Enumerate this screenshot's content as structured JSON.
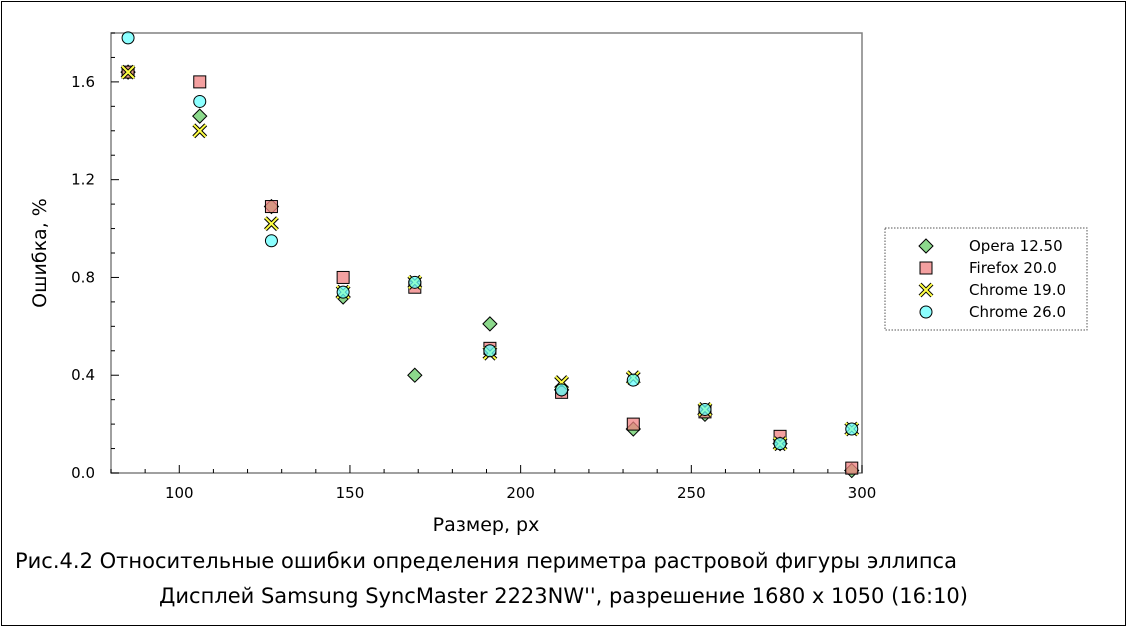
{
  "chart_data": {
    "type": "scatter",
    "xlabel": "Размер, px",
    "ylabel": "Ошибка, %",
    "xlim": [
      80,
      300
    ],
    "ylim": [
      0.0,
      1.8
    ],
    "xticks": [
      100,
      150,
      200,
      250,
      300
    ],
    "xtick_labels": [
      "100",
      "150",
      "200",
      "250",
      "300"
    ],
    "yticks": [
      0.0,
      0.4,
      0.8,
      1.2,
      1.6
    ],
    "ytick_labels": [
      "0.0",
      "0.4",
      "0.8",
      "1.2",
      "1.6"
    ],
    "grid": false,
    "legend_position": "right, outside plot",
    "series": [
      {
        "name": "Opera 12.50",
        "marker": "diamond",
        "color": "#66cc66",
        "x": [
          85,
          106,
          127,
          148,
          169,
          191,
          212,
          233,
          254,
          276,
          297
        ],
        "y": [
          1.64,
          1.46,
          1.09,
          0.72,
          0.4,
          0.61,
          0.34,
          0.18,
          0.24,
          0.12,
          0.01
        ]
      },
      {
        "name": "Firefox 20.0",
        "marker": "square",
        "color": "#f08080",
        "x": [
          85,
          106,
          127,
          148,
          169,
          191,
          212,
          233,
          254,
          276,
          297
        ],
        "y": [
          1.64,
          1.6,
          1.09,
          0.8,
          0.76,
          0.51,
          0.33,
          0.2,
          0.25,
          0.15,
          0.02
        ]
      },
      {
        "name": "Chrome 19.0",
        "marker": "x",
        "color": "#ffff44",
        "x": [
          85,
          106,
          127,
          148,
          169,
          191,
          212,
          233,
          254,
          276,
          297
        ],
        "y": [
          1.64,
          1.4,
          1.02,
          0.74,
          0.78,
          0.49,
          0.37,
          0.39,
          0.26,
          0.12,
          0.18
        ]
      },
      {
        "name": "Chrome 26.0",
        "marker": "circle",
        "color": "#66ffff",
        "x": [
          85,
          106,
          127,
          148,
          169,
          191,
          212,
          233,
          254,
          276,
          297
        ],
        "y": [
          1.78,
          1.52,
          0.95,
          0.74,
          0.78,
          0.5,
          0.34,
          0.38,
          0.26,
          0.12,
          0.18
        ]
      }
    ]
  },
  "caption": {
    "line1": "Рис.4.2 Относительные ошибки определения периметра растровой фигуры эллипса",
    "line2": "Дисплей Samsung SyncMaster 2223NW'', разрешение 1680 x 1050 (16:10)"
  }
}
